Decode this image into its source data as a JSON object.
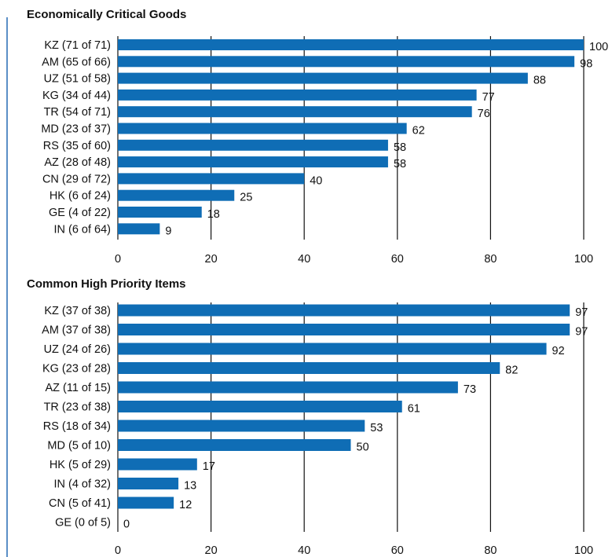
{
  "chart_data": [
    {
      "type": "bar",
      "orientation": "horizontal",
      "title": "Economically Critical Goods",
      "categories": [
        "KZ (71 of 71)",
        "AM (65 of 66)",
        "UZ (51 of 58)",
        "KG (34 of 44)",
        "TR (54 of 71)",
        "MD (23 of 37)",
        "RS (35 of 60)",
        "AZ (28 of 48)",
        "CN (29 of 72)",
        "HK (6 of 24)",
        "GE (4 of 22)",
        "IN (6 of 64)"
      ],
      "values": [
        100,
        98,
        88,
        77,
        76,
        62,
        58,
        58,
        40,
        25,
        18,
        9
      ],
      "xlim": [
        0,
        100
      ],
      "xticks": [
        0,
        20,
        40,
        60,
        80,
        100
      ],
      "grid": "vertical",
      "bar_color": "#0f6db5"
    },
    {
      "type": "bar",
      "orientation": "horizontal",
      "title": "Common High Priority Items",
      "categories": [
        "KZ (37 of 38)",
        "AM (37 of 38)",
        "UZ (24 of 26)",
        "KG (23 of 28)",
        "AZ (11 of 15)",
        "TR (23 of 38)",
        "RS (18 of 34)",
        "MD (5 of 10)",
        "HK (5 of 29)",
        "IN (4 of 32)",
        "CN (5 of 41)",
        "GE (0 of 5)"
      ],
      "values": [
        97,
        97,
        92,
        82,
        73,
        61,
        53,
        50,
        17,
        13,
        12,
        0
      ],
      "xlim": [
        0,
        100
      ],
      "xticks": [
        0,
        20,
        40,
        60,
        80,
        100
      ],
      "grid": "vertical",
      "bar_color": "#0f6db5"
    }
  ]
}
